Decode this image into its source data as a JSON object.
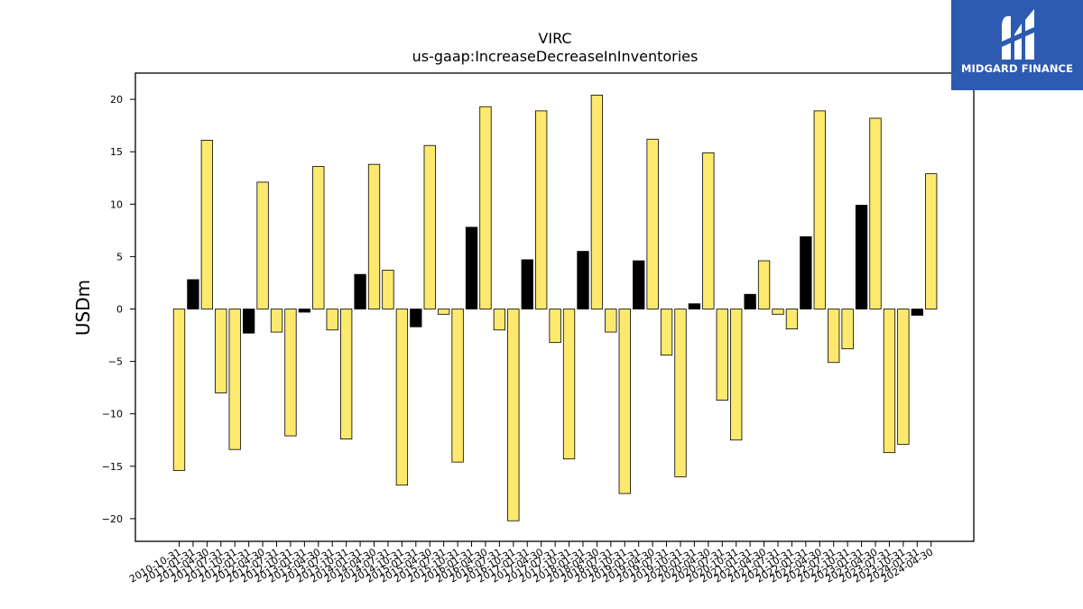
{
  "brand": {
    "name": "MIDGARD FINANCE",
    "bg_color": "#2d5bb1"
  },
  "chart_data": {
    "type": "bar",
    "title": "VIRC",
    "subtitle": "us-gaap:IncreaseDecreaseInInventories",
    "xlabel": "",
    "ylabel": "USDm",
    "ylim": [
      -22.5,
      22.5
    ],
    "yticks": [
      -20,
      -15,
      -10,
      -5,
      0,
      5,
      10,
      15,
      20
    ],
    "grid": false,
    "colors": {
      "default": "#fde96d",
      "highlight": "#000000"
    },
    "categories": [
      "2010-10-31",
      "2011-01-31",
      "2011-04-30",
      "2011-07-31",
      "2011-10-31",
      "2012-01-31",
      "2012-04-30",
      "2012-07-31",
      "2012-10-31",
      "2013-01-31",
      "2013-04-30",
      "2013-07-31",
      "2013-10-31",
      "2014-01-31",
      "2014-04-30",
      "2014-07-31",
      "2014-10-31",
      "2015-01-31",
      "2015-04-30",
      "2015-07-31",
      "2015-10-31",
      "2016-01-31",
      "2016-04-30",
      "2016-07-31",
      "2016-10-31",
      "2017-01-31",
      "2017-04-30",
      "2017-07-31",
      "2017-10-31",
      "2018-01-31",
      "2018-04-30",
      "2018-07-31",
      "2018-10-31",
      "2019-01-31",
      "2019-04-30",
      "2019-07-31",
      "2019-10-31",
      "2020-01-31",
      "2020-04-30",
      "2020-07-31",
      "2020-10-31",
      "2021-01-31",
      "2021-04-30",
      "2021-07-31",
      "2021-10-31",
      "2022-01-31",
      "2022-04-30",
      "2022-07-31",
      "2022-10-31",
      "2023-01-31",
      "2023-04-30",
      "2023-07-31",
      "2023-10-31",
      "2024-01-31",
      "2024-04-30"
    ],
    "values": [
      -15.4,
      2.8,
      16.1,
      -8.0,
      -13.4,
      -2.3,
      12.1,
      -2.2,
      -12.1,
      -0.3,
      13.6,
      -2.0,
      -12.4,
      3.3,
      13.8,
      3.7,
      -16.8,
      -1.7,
      15.6,
      -0.5,
      -14.6,
      7.8,
      19.3,
      -2.0,
      -20.2,
      4.7,
      18.9,
      -3.2,
      -14.3,
      5.5,
      20.4,
      -2.2,
      -17.6,
      4.6,
      16.2,
      -4.4,
      -16.0,
      0.5,
      14.9,
      -8.7,
      -12.5,
      1.4,
      4.6,
      -0.5,
      -1.9,
      6.9,
      18.9,
      -5.1,
      -3.8,
      9.9,
      18.2,
      -13.7,
      -12.9,
      -0.6,
      12.9
    ],
    "highlight": [
      false,
      true,
      false,
      false,
      false,
      true,
      false,
      false,
      false,
      true,
      false,
      false,
      false,
      true,
      false,
      false,
      false,
      true,
      false,
      false,
      false,
      true,
      false,
      false,
      false,
      true,
      false,
      false,
      false,
      true,
      false,
      false,
      false,
      true,
      false,
      false,
      false,
      true,
      false,
      false,
      false,
      true,
      false,
      false,
      false,
      true,
      false,
      false,
      false,
      true,
      false,
      false,
      false,
      true,
      false
    ]
  }
}
